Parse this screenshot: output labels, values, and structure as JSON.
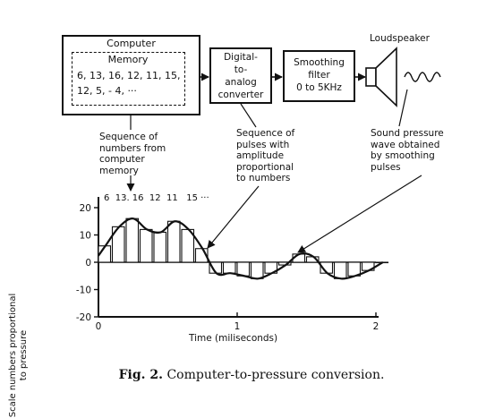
{
  "computer": {
    "title": "Computer",
    "memory_title": "Memory",
    "memory_lines": [
      "6, 13, 16, 12, 11, 15,",
      "12, 5, - 4, ···"
    ]
  },
  "dac": {
    "label": "Digital-\nto-\nanalog\nconverter"
  },
  "filter": {
    "label": "Smoothing\nfilter\n0 to 5KHz"
  },
  "loudspeaker": {
    "label": "Loudspeaker"
  },
  "annotations": {
    "sequence_numbers": "Sequence of\nnumbers from\ncomputer\nmemory",
    "sequence_pulses": "Sequence of\npulses with\namplitude\nproportional\nto numbers",
    "sound_wave": "Sound pressure\nwave obtained\nby smoothing\npulses",
    "sample_values": "6  13. 16  12  11   15 ···"
  },
  "chart_data": {
    "type": "bar",
    "xlabel": "Time (miliseconds)",
    "ylabel": "Scale numbers proportional to pressure",
    "xlim": [
      0,
      2
    ],
    "ylim": [
      -20,
      20
    ],
    "x_ticks": [
      0,
      1,
      2
    ],
    "y_ticks": [
      20,
      10,
      0,
      -10,
      -20
    ],
    "y_tick_labels": [
      "20",
      "10",
      "0",
      "-10",
      "-20"
    ],
    "sample_interval_ms": 0.1,
    "values": [
      6,
      13,
      16,
      12,
      11,
      15,
      12,
      5,
      -4,
      -4,
      -5,
      -6,
      -4,
      -1,
      3,
      2,
      -4,
      -6,
      -5,
      -3,
      0
    ]
  },
  "caption": {
    "label": "Fig. 2.",
    "text": "Computer-to-pressure conversion."
  }
}
